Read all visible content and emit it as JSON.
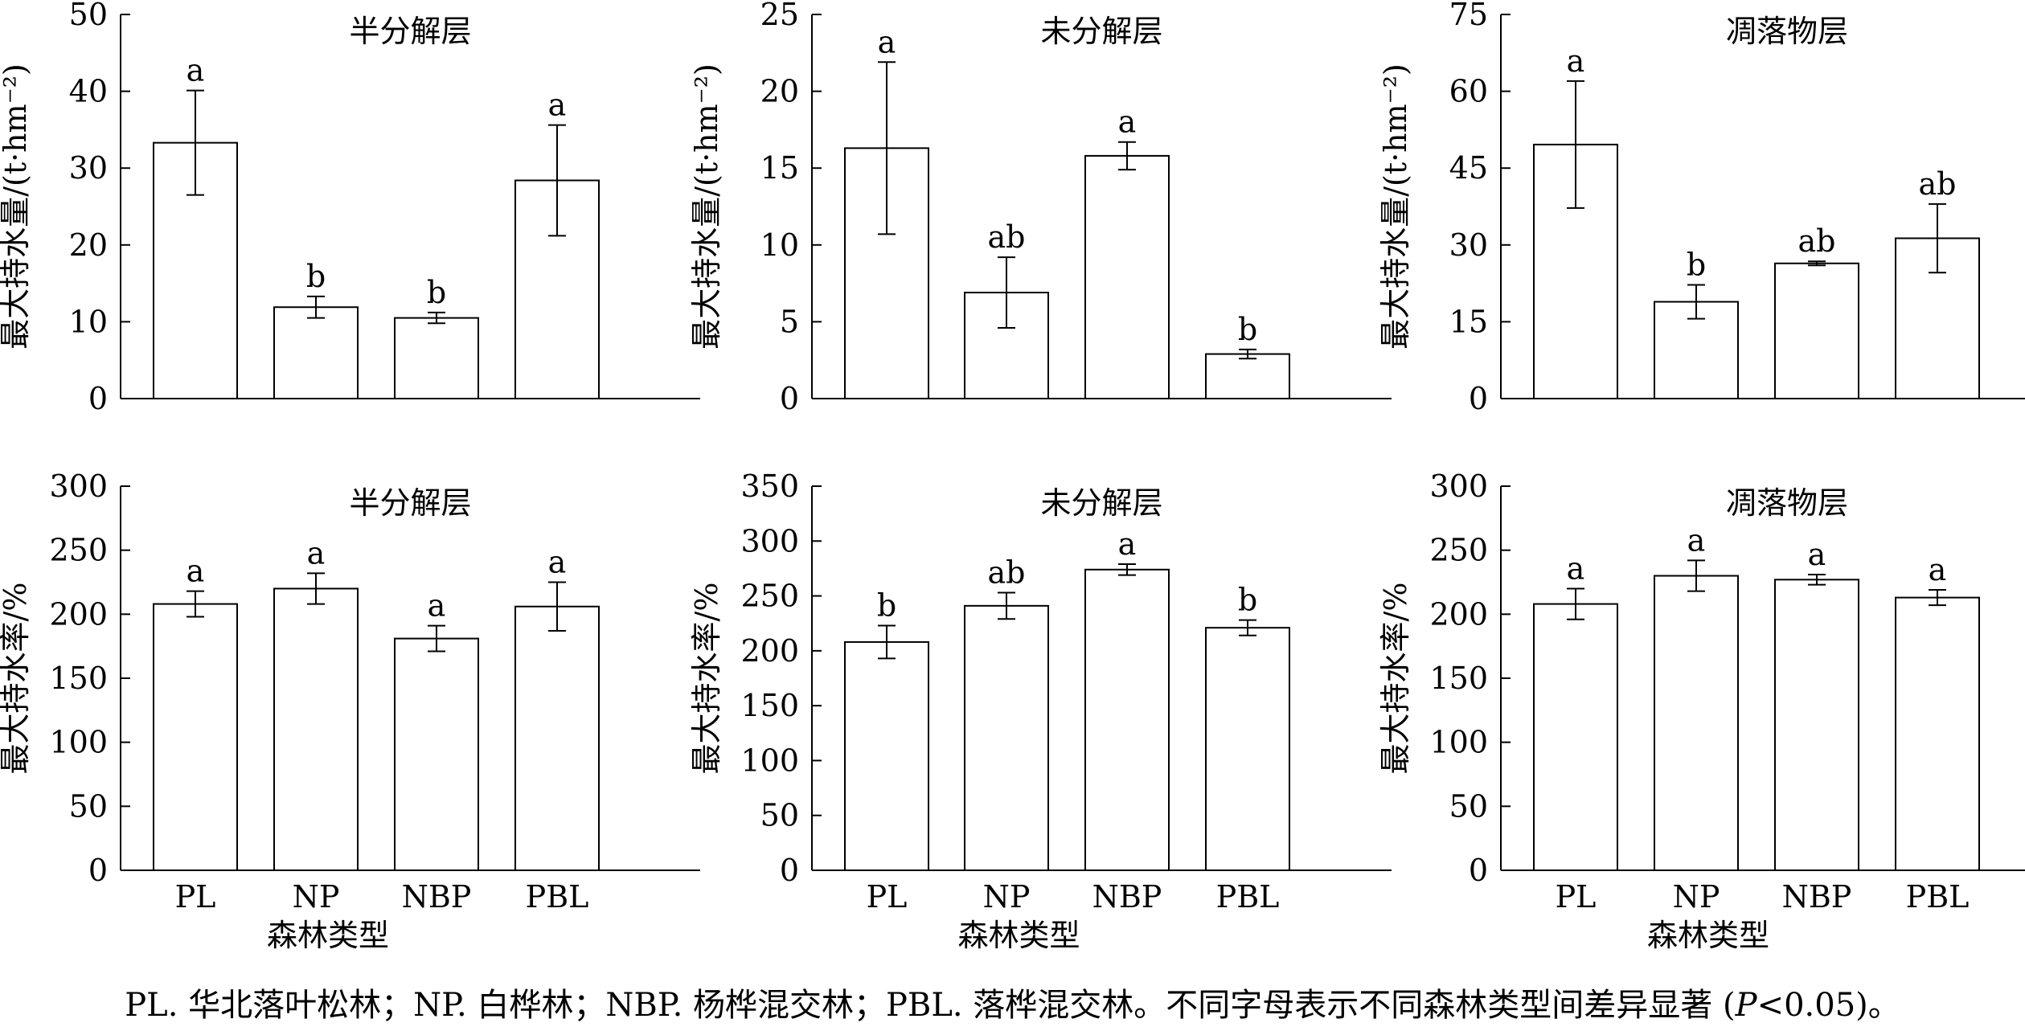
{
  "x_axis_title": "森林类型",
  "caption": {
    "before": "PL. 华北落叶松林；NP. 白桦林；NBP. 杨桦混交林；PBL. 落桦混交林。不同字母表示不同森林类型间差异显著 (",
    "p": "P",
    "after": "<0.05)。"
  },
  "chart_data": [
    {
      "type": "bar",
      "title": "半分解层",
      "ylabel": "最大持水量/(t·hm⁻²)",
      "xlabel": "",
      "categories": [
        "PL",
        "NP",
        "NBP",
        "PBL"
      ],
      "ylim": [
        0,
        50
      ],
      "yticks": [
        0,
        10,
        20,
        30,
        40,
        50
      ],
      "values": [
        33.3,
        11.9,
        10.5,
        28.4
      ],
      "errors": [
        6.8,
        1.4,
        0.7,
        7.2
      ],
      "labels": [
        "a",
        "b",
        "b",
        "a"
      ],
      "show_xticklabels": false
    },
    {
      "type": "bar",
      "title": "未分解层",
      "ylabel": "最大持水量/(t·hm⁻²)",
      "xlabel": "",
      "categories": [
        "PL",
        "NP",
        "NBP",
        "PBL"
      ],
      "ylim": [
        0,
        25
      ],
      "yticks": [
        0,
        5,
        10,
        15,
        20,
        25
      ],
      "values": [
        16.3,
        6.9,
        15.8,
        2.9
      ],
      "errors": [
        5.6,
        2.3,
        0.9,
        0.3
      ],
      "labels": [
        "a",
        "ab",
        "a",
        "b"
      ],
      "show_xticklabels": false
    },
    {
      "type": "bar",
      "title": "凋落物层",
      "ylabel": "最大持水量/(t·hm⁻²)",
      "xlabel": "",
      "categories": [
        "PL",
        "NP",
        "NBP",
        "PBL"
      ],
      "ylim": [
        0,
        75
      ],
      "yticks": [
        0,
        15,
        30,
        45,
        60,
        75
      ],
      "values": [
        49.6,
        18.9,
        26.4,
        31.3
      ],
      "errors": [
        12.4,
        3.3,
        0.4,
        6.7
      ],
      "labels": [
        "a",
        "b",
        "ab",
        "ab"
      ],
      "show_xticklabels": false
    },
    {
      "type": "bar",
      "title": "半分解层",
      "ylabel": "最大持水率/%",
      "xlabel": "森林类型",
      "categories": [
        "PL",
        "NP",
        "NBP",
        "PBL"
      ],
      "ylim": [
        0,
        300
      ],
      "yticks": [
        0,
        50,
        100,
        150,
        200,
        250,
        300
      ],
      "values": [
        208,
        220,
        181,
        206
      ],
      "errors": [
        10,
        12,
        10,
        19
      ],
      "labels": [
        "a",
        "a",
        "a",
        "a"
      ],
      "show_xticklabels": true
    },
    {
      "type": "bar",
      "title": "未分解层",
      "ylabel": "最大持水率/%",
      "xlabel": "森林类型",
      "categories": [
        "PL",
        "NP",
        "NBP",
        "PBL"
      ],
      "ylim": [
        0,
        350
      ],
      "yticks": [
        0,
        50,
        100,
        150,
        200,
        250,
        300,
        350
      ],
      "values": [
        208,
        241,
        274,
        221
      ],
      "errors": [
        15,
        12,
        5,
        7
      ],
      "labels": [
        "b",
        "ab",
        "a",
        "b"
      ],
      "show_xticklabels": true
    },
    {
      "type": "bar",
      "title": "凋落物层",
      "ylabel": "最大持水率/%",
      "xlabel": "森林类型",
      "categories": [
        "PL",
        "NP",
        "NBP",
        "PBL"
      ],
      "ylim": [
        0,
        300
      ],
      "yticks": [
        0,
        50,
        100,
        150,
        200,
        250,
        300
      ],
      "values": [
        208,
        230,
        227,
        213
      ],
      "errors": [
        12,
        12,
        4,
        6
      ],
      "labels": [
        "a",
        "a",
        "a",
        "a"
      ],
      "show_xticklabels": true
    }
  ]
}
